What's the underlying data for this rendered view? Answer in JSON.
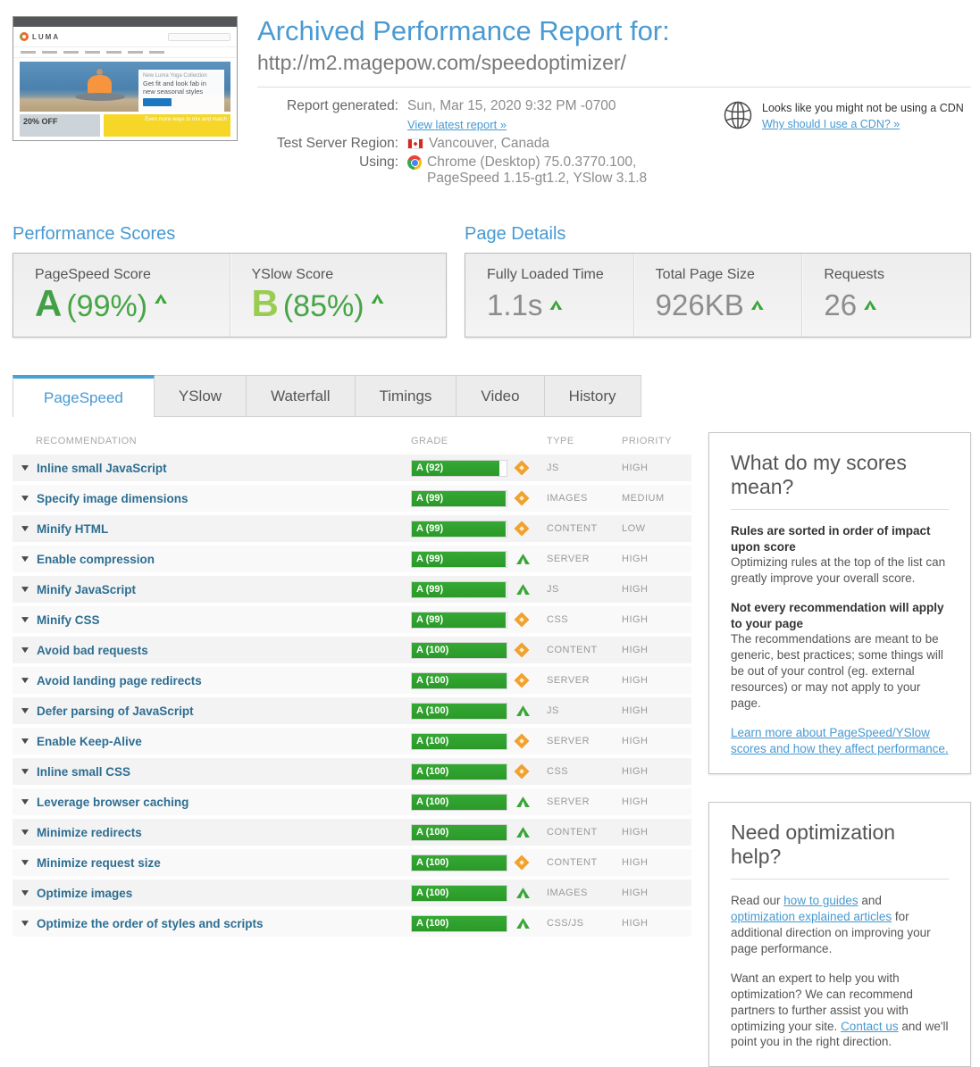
{
  "colors": {
    "accent_blue": "#4799d1",
    "grade_a_green": "#43a047",
    "grade_b_green": "#9bcc52",
    "bar_green": "#2da22d",
    "diamond_orange": "#f1a12f",
    "arrow_green": "#3aa63a"
  },
  "header": {
    "title": "Archived Performance Report for:",
    "url": "http://m2.magepow.com/speedoptimizer/"
  },
  "thumbnail": {
    "logo": "LUMA",
    "card_eyebrow": "New Luma Yoga Collection",
    "card_text": "Get fit and look fab in new seasonal styles",
    "offer": "20% OFF",
    "banner": "Even more ways to mix and match"
  },
  "report_meta": {
    "generated_label": "Report generated:",
    "generated_value": "Sun, Mar 15, 2020 9:32 PM -0700",
    "latest_link": "View latest report »",
    "region_label": "Test Server Region:",
    "region_value": "Vancouver, Canada",
    "using_label": "Using:",
    "using_line1": "Chrome (Desktop) 75.0.3770.100,",
    "using_line2": "PageSpeed 1.15-gt1.2, YSlow 3.1.8"
  },
  "cdn_notice": {
    "text": "Looks like you might not be using a CDN",
    "link": "Why should I use a CDN? »"
  },
  "performance_scores": {
    "heading": "Performance Scores",
    "scores": [
      {
        "label": "PageSpeed Score",
        "grade": "A",
        "percent": "(99%)"
      },
      {
        "label": "YSlow Score",
        "grade": "B",
        "percent": "(85%)"
      }
    ]
  },
  "page_details": {
    "heading": "Page Details",
    "items": [
      {
        "label": "Fully Loaded Time",
        "value": "1.1s"
      },
      {
        "label": "Total Page Size",
        "value": "926KB"
      },
      {
        "label": "Requests",
        "value": "26"
      }
    ]
  },
  "tabs": {
    "active_index": 0,
    "items": [
      "PageSpeed",
      "YSlow",
      "Waterfall",
      "Timings",
      "Video",
      "History"
    ]
  },
  "table": {
    "headers": {
      "recommendation": "RECOMMENDATION",
      "grade": "GRADE",
      "type": "TYPE",
      "priority": "PRIORITY"
    },
    "rows": [
      {
        "name": "Inline small JavaScript",
        "grade_label": "A (92)",
        "score": 92,
        "icon": "diamond",
        "type": "JS",
        "priority": "HIGH"
      },
      {
        "name": "Specify image dimensions",
        "grade_label": "A (99)",
        "score": 99,
        "icon": "diamond",
        "type": "IMAGES",
        "priority": "MEDIUM"
      },
      {
        "name": "Minify HTML",
        "grade_label": "A (99)",
        "score": 99,
        "icon": "diamond",
        "type": "CONTENT",
        "priority": "LOW"
      },
      {
        "name": "Enable compression",
        "grade_label": "A (99)",
        "score": 99,
        "icon": "arrow",
        "type": "SERVER",
        "priority": "HIGH"
      },
      {
        "name": "Minify JavaScript",
        "grade_label": "A (99)",
        "score": 99,
        "icon": "arrow",
        "type": "JS",
        "priority": "HIGH"
      },
      {
        "name": "Minify CSS",
        "grade_label": "A (99)",
        "score": 99,
        "icon": "diamond",
        "type": "CSS",
        "priority": "HIGH"
      },
      {
        "name": "Avoid bad requests",
        "grade_label": "A (100)",
        "score": 100,
        "icon": "diamond",
        "type": "CONTENT",
        "priority": "HIGH"
      },
      {
        "name": "Avoid landing page redirects",
        "grade_label": "A (100)",
        "score": 100,
        "icon": "diamond",
        "type": "SERVER",
        "priority": "HIGH"
      },
      {
        "name": "Defer parsing of JavaScript",
        "grade_label": "A (100)",
        "score": 100,
        "icon": "arrow",
        "type": "JS",
        "priority": "HIGH"
      },
      {
        "name": "Enable Keep-Alive",
        "grade_label": "A (100)",
        "score": 100,
        "icon": "diamond",
        "type": "SERVER",
        "priority": "HIGH"
      },
      {
        "name": "Inline small CSS",
        "grade_label": "A (100)",
        "score": 100,
        "icon": "diamond",
        "type": "CSS",
        "priority": "HIGH"
      },
      {
        "name": "Leverage browser caching",
        "grade_label": "A (100)",
        "score": 100,
        "icon": "arrow",
        "type": "SERVER",
        "priority": "HIGH"
      },
      {
        "name": "Minimize redirects",
        "grade_label": "A (100)",
        "score": 100,
        "icon": "arrow",
        "type": "CONTENT",
        "priority": "HIGH"
      },
      {
        "name": "Minimize request size",
        "grade_label": "A (100)",
        "score": 100,
        "icon": "diamond",
        "type": "CONTENT",
        "priority": "HIGH"
      },
      {
        "name": "Optimize images",
        "grade_label": "A (100)",
        "score": 100,
        "icon": "arrow",
        "type": "IMAGES",
        "priority": "HIGH"
      },
      {
        "name": "Optimize the order of styles and scripts",
        "grade_label": "A (100)",
        "score": 100,
        "icon": "arrow",
        "type": "CSS/JS",
        "priority": "HIGH"
      }
    ]
  },
  "sidebar": {
    "scores_panel": {
      "heading": "What do my scores mean?",
      "sub1": "Rules are sorted in order of impact upon score",
      "p1": "Optimizing rules at the top of the list can greatly improve your overall score.",
      "sub2": "Not every recommendation will apply to your page",
      "p2": "The recommendations are meant to be generic, best practices; some things will be out of your control (eg. external resources) or may not apply to your page.",
      "link": "Learn more about PageSpeed/YSlow scores and how they affect performance."
    },
    "help_panel": {
      "heading": "Need optimization help?",
      "p1": [
        {
          "text": "Read our "
        },
        {
          "text": "how to guides",
          "link": true
        },
        {
          "text": " and "
        },
        {
          "text": "optimization explained articles",
          "link": true
        },
        {
          "text": " for additional direction on improving your page performance."
        }
      ],
      "p2": [
        {
          "text": "Want an expert to help you with optimization? We can recommend partners to further assist you with optimizing your site. "
        },
        {
          "text": "Contact us",
          "link": true
        },
        {
          "text": " and we'll point you in the right direction."
        }
      ]
    }
  }
}
